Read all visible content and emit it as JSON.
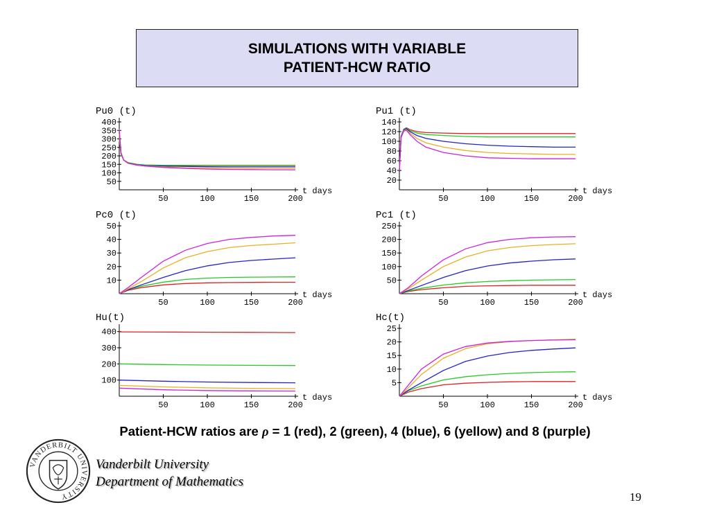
{
  "slide": {
    "title_line1": "SIMULATIONS WITH VARIABLE",
    "title_line2": "PATIENT-HCW RATIO",
    "caption_prefix": "Patient-HCW ratios are ",
    "caption_symbol": "ρ",
    "caption_suffix": " = 1 (red), 2 (green), 4 (blue), 6 (yellow) and 8 (purple)",
    "university": "Vanderbilt University",
    "department": "Department of Mathematics",
    "seal_text": "VANDERBILT UNIVERSITY",
    "page_number": "19"
  },
  "colors": {
    "red": "#e02020",
    "green": "#22cc22",
    "blue": "#2222cc",
    "yellow": "#e8b020",
    "purple": "#cc22dd",
    "title_bg": "#dcdcf4"
  },
  "chart_data": [
    {
      "type": "line",
      "title": "Pu0 (t)",
      "xlabel": "t days",
      "ylabel": "",
      "xlim": [
        0,
        200
      ],
      "ylim": [
        0,
        400
      ],
      "xticks": [
        50,
        100,
        150,
        200
      ],
      "yticks": [
        50,
        100,
        150,
        200,
        250,
        300,
        350,
        400
      ],
      "x": [
        0,
        2,
        5,
        10,
        20,
        30,
        50,
        75,
        100,
        125,
        150,
        175,
        200
      ],
      "series": [
        {
          "color": "red",
          "values": [
            300,
            210,
            175,
            160,
            150,
            145,
            143,
            143,
            143,
            143,
            143,
            143,
            143
          ]
        },
        {
          "color": "green",
          "values": [
            300,
            210,
            175,
            160,
            150,
            146,
            145,
            145,
            145,
            145,
            145,
            145,
            145
          ]
        },
        {
          "color": "blue",
          "values": [
            320,
            215,
            175,
            158,
            148,
            143,
            140,
            138,
            136,
            135,
            135,
            135,
            135
          ]
        },
        {
          "color": "yellow",
          "values": [
            330,
            215,
            175,
            157,
            146,
            140,
            135,
            130,
            128,
            127,
            126,
            126,
            126
          ]
        },
        {
          "color": "purple",
          "values": [
            360,
            220,
            175,
            156,
            145,
            139,
            132,
            126,
            122,
            120,
            119,
            118,
            118
          ]
        }
      ]
    },
    {
      "type": "line",
      "title": "Pu1 (t)",
      "xlabel": "t days",
      "ylabel": "",
      "xlim": [
        0,
        200
      ],
      "ylim": [
        0,
        140
      ],
      "xticks": [
        50,
        100,
        150,
        200
      ],
      "yticks": [
        20,
        40,
        60,
        80,
        100,
        120,
        140
      ],
      "x": [
        0,
        2,
        5,
        8,
        12,
        20,
        30,
        50,
        75,
        100,
        125,
        150,
        175,
        200
      ],
      "series": [
        {
          "color": "red",
          "values": [
            40,
            110,
            125,
            128,
            124,
            120,
            118,
            117,
            116,
            116,
            116,
            116,
            116,
            116
          ]
        },
        {
          "color": "green",
          "values": [
            40,
            110,
            125,
            127,
            122,
            117,
            114,
            112,
            110,
            109,
            109,
            109,
            109,
            109
          ]
        },
        {
          "color": "blue",
          "values": [
            40,
            110,
            124,
            126,
            120,
            112,
            106,
            100,
            95,
            92,
            90,
            89,
            88,
            88
          ]
        },
        {
          "color": "yellow",
          "values": [
            40,
            108,
            122,
            124,
            117,
            106,
            97,
            88,
            81,
            77,
            75,
            74,
            73,
            73
          ]
        },
        {
          "color": "purple",
          "values": [
            40,
            108,
            121,
            123,
            114,
            100,
            88,
            77,
            70,
            66,
            65,
            64,
            64,
            64
          ]
        }
      ]
    },
    {
      "type": "line",
      "title": "Pc0 (t)",
      "xlabel": "t days",
      "ylabel": "",
      "xlim": [
        0,
        200
      ],
      "ylim": [
        0,
        50
      ],
      "xticks": [
        50,
        100,
        150,
        200
      ],
      "yticks": [
        10,
        20,
        30,
        40,
        50
      ],
      "x": [
        0,
        10,
        25,
        50,
        75,
        100,
        125,
        150,
        175,
        200
      ],
      "series": [
        {
          "color": "red",
          "values": [
            0,
            2.5,
            4.5,
            6.5,
            7.5,
            8,
            8.2,
            8.3,
            8.4,
            8.4
          ]
        },
        {
          "color": "green",
          "values": [
            0,
            3,
            5.5,
            8.5,
            10.5,
            11.5,
            12,
            12.2,
            12.3,
            12.4
          ]
        },
        {
          "color": "blue",
          "values": [
            0,
            3,
            6.5,
            12,
            17,
            20.5,
            23,
            24.5,
            25.5,
            26.5
          ]
        },
        {
          "color": "yellow",
          "values": [
            0,
            3.5,
            9,
            19,
            26.5,
            31,
            34,
            35.5,
            36.5,
            37.5
          ]
        },
        {
          "color": "purple",
          "values": [
            0,
            4.5,
            12,
            24,
            32,
            37,
            40,
            41.5,
            42.5,
            43
          ]
        }
      ]
    },
    {
      "type": "line",
      "title": "Pc1 (t)",
      "xlabel": "t days",
      "ylabel": "",
      "xlim": [
        0,
        200
      ],
      "ylim": [
        0,
        250
      ],
      "xticks": [
        50,
        100,
        150,
        200
      ],
      "yticks": [
        50,
        100,
        150,
        200,
        250
      ],
      "x": [
        0,
        10,
        25,
        50,
        75,
        100,
        125,
        150,
        175,
        200
      ],
      "series": [
        {
          "color": "red",
          "values": [
            0,
            8,
            15,
            22,
            27,
            29,
            30,
            31,
            31,
            31
          ]
        },
        {
          "color": "green",
          "values": [
            0,
            10,
            20,
            32,
            40,
            45,
            48,
            50,
            51,
            52
          ]
        },
        {
          "color": "blue",
          "values": [
            0,
            12,
            30,
            60,
            85,
            102,
            113,
            120,
            125,
            128
          ]
        },
        {
          "color": "yellow",
          "values": [
            0,
            18,
            50,
            100,
            135,
            158,
            170,
            177,
            181,
            184
          ]
        },
        {
          "color": "purple",
          "values": [
            0,
            22,
            65,
            125,
            165,
            188,
            200,
            206,
            209,
            210
          ]
        }
      ]
    },
    {
      "type": "line",
      "title": "Hu(t)",
      "xlabel": "t days",
      "ylabel": "",
      "xlim": [
        0,
        200
      ],
      "ylim": [
        0,
        420
      ],
      "xticks": [
        50,
        100,
        150,
        200
      ],
      "yticks": [
        100,
        200,
        300,
        400
      ],
      "x": [
        0,
        50,
        100,
        150,
        200
      ],
      "series": [
        {
          "color": "red",
          "values": [
            398,
            397,
            396,
            395,
            394
          ]
        },
        {
          "color": "green",
          "values": [
            200,
            196,
            193,
            191,
            190
          ]
        },
        {
          "color": "blue",
          "values": [
            100,
            93,
            88,
            85,
            83
          ]
        },
        {
          "color": "yellow",
          "values": [
            67,
            58,
            52,
            49,
            47
          ]
        },
        {
          "color": "purple",
          "values": [
            50,
            40,
            35,
            33,
            32
          ]
        }
      ]
    },
    {
      "type": "line",
      "title": "Hc(t)",
      "xlabel": "t days",
      "ylabel": "",
      "xlim": [
        0,
        200
      ],
      "ylim": [
        0,
        25
      ],
      "xticks": [
        50,
        100,
        150,
        200
      ],
      "yticks": [
        5,
        10,
        15,
        20,
        25
      ],
      "x": [
        0,
        10,
        25,
        50,
        75,
        100,
        125,
        150,
        175,
        200
      ],
      "series": [
        {
          "color": "red",
          "values": [
            0,
            1.5,
            2.8,
            4.2,
            4.8,
            5.1,
            5.3,
            5.4,
            5.4,
            5.4
          ]
        },
        {
          "color": "green",
          "values": [
            0,
            2,
            3.8,
            6,
            7.2,
            7.9,
            8.4,
            8.7,
            8.9,
            9
          ]
        },
        {
          "color": "blue",
          "values": [
            0,
            2.2,
            5,
            9.5,
            12.8,
            14.8,
            16.1,
            16.9,
            17.4,
            17.8
          ]
        },
        {
          "color": "yellow",
          "values": [
            0,
            3,
            8,
            14,
            17.5,
            19.3,
            20.1,
            20.5,
            20.8,
            21
          ]
        },
        {
          "color": "purple",
          "values": [
            0,
            4,
            10,
            15.5,
            18.3,
            19.6,
            20.2,
            20.5,
            20.7,
            20.8
          ]
        }
      ]
    }
  ]
}
